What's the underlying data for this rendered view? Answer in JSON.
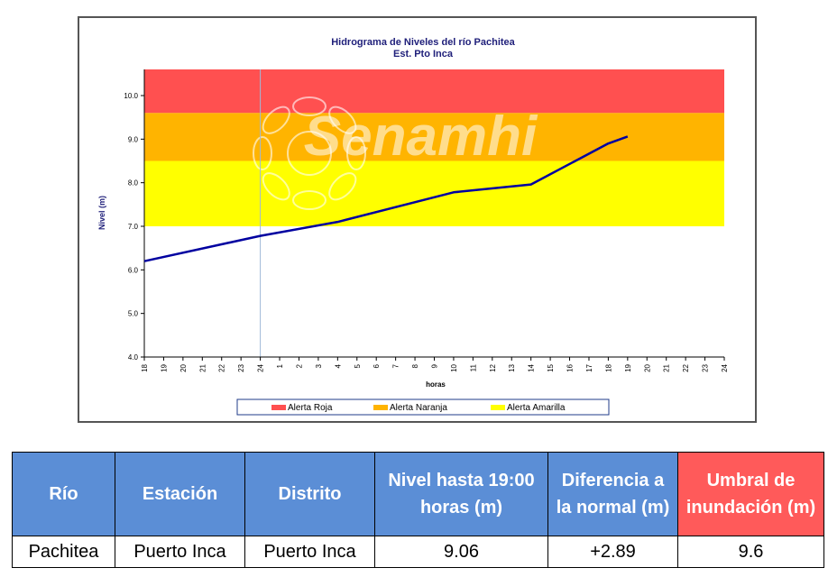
{
  "chart_data": {
    "type": "line",
    "title": "Hidrograma de Niveles del río Pachitea",
    "subtitle": "Est. Pto Inca",
    "xlabel": "horas",
    "ylabel": "Nivel (m)",
    "ylim": [
      4.0,
      10.6
    ],
    "y_ticks": [
      "4.0",
      "5.0",
      "6.0",
      "7.0",
      "8.0",
      "9.0",
      "10.0"
    ],
    "x_ticks": [
      "18",
      "19",
      "20",
      "21",
      "22",
      "23",
      "24",
      "1",
      "2",
      "3",
      "4",
      "5",
      "6",
      "7",
      "8",
      "9",
      "10",
      "11",
      "12",
      "13",
      "14",
      "15",
      "16",
      "17",
      "18",
      "19",
      "20",
      "21",
      "22",
      "23",
      "24"
    ],
    "bands": [
      {
        "name": "Alerta Roja",
        "from": 9.6,
        "to": 10.6,
        "color": "#ff5050"
      },
      {
        "name": "Alerta Naranja",
        "from": 8.5,
        "to": 9.6,
        "color": "#ffb400"
      },
      {
        "name": "Alerta Amarilla",
        "from": 7.0,
        "to": 8.5,
        "color": "#ffff00"
      }
    ],
    "series": [
      {
        "color": "#0000a0",
        "points": [
          [
            0,
            6.2
          ],
          [
            6,
            6.78
          ],
          [
            10,
            7.1
          ],
          [
            16,
            7.78
          ],
          [
            20,
            7.96
          ],
          [
            24,
            8.9
          ],
          [
            25,
            9.06
          ]
        ]
      }
    ],
    "legend_position": "bottom",
    "grid": false,
    "watermark": "Senamhi"
  },
  "table": {
    "headers": [
      {
        "text": "Río",
        "color": "#5b8ed6"
      },
      {
        "text": "Estación",
        "color": "#5b8ed6"
      },
      {
        "text": "Distrito",
        "color": "#5b8ed6"
      },
      {
        "text": "Nivel hasta 19:00 horas (m)",
        "color": "#5b8ed6"
      },
      {
        "text": "Diferencia a la normal (m)",
        "color": "#5b8ed6"
      },
      {
        "text": "Umbral de inundación (m)",
        "color": "#ff5a5a"
      }
    ],
    "row": [
      "Pachitea",
      "Puerto Inca",
      "Puerto Inca",
      "9.06",
      "+2.89",
      "9.6"
    ]
  }
}
